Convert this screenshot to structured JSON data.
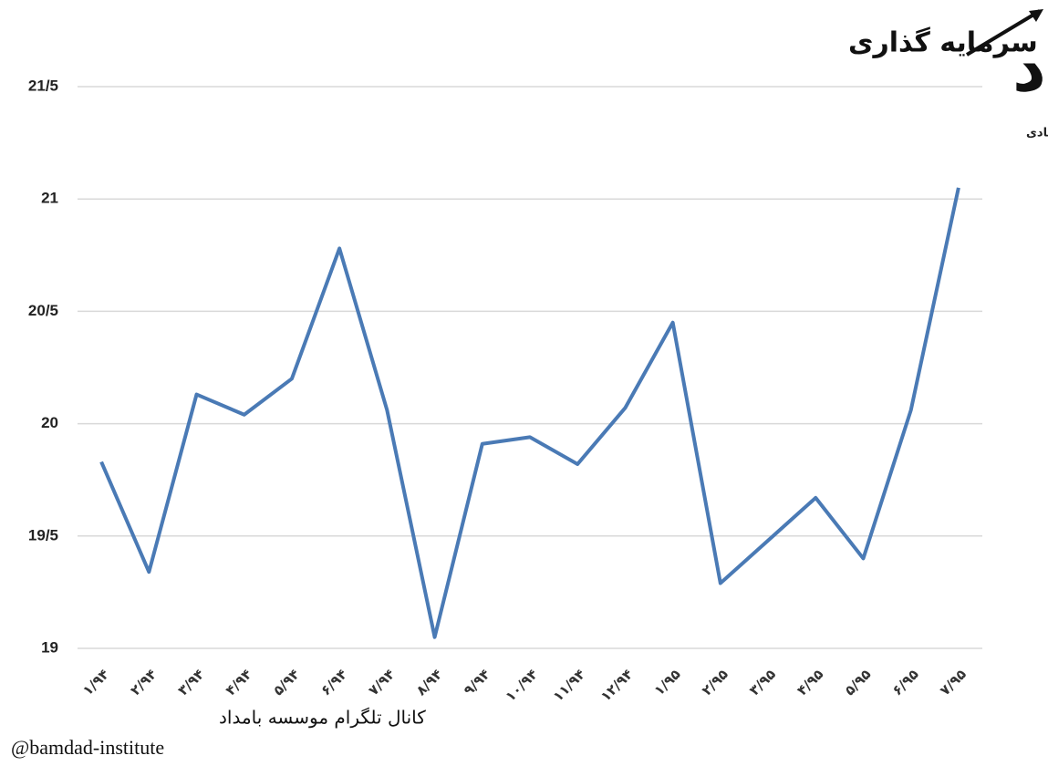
{
  "chart_data": {
    "type": "line",
    "title": "بررسی روند تغییرات نرخ بازده صندوق های سرمایه گذاری",
    "categories": [
      "۱/۹۴",
      "۲/۹۴",
      "۳/۹۴",
      "۴/۹۴",
      "۵/۹۴",
      "۶/۹۴",
      "۷/۹۴",
      "۸/۹۴",
      "۹/۹۴",
      "۱۰/۹۴",
      "۱۱/۹۴",
      "۱۲/۹۴",
      "۱/۹۵",
      "۲/۹۵",
      "۳/۹۵",
      "۴/۹۵",
      "۵/۹۵",
      "۶/۹۵",
      "۷/۹۵"
    ],
    "values": [
      19.83,
      19.34,
      20.13,
      20.04,
      20.2,
      20.78,
      20.06,
      19.05,
      19.91,
      19.94,
      19.82,
      20.07,
      20.45,
      19.29,
      19.48,
      19.67,
      19.4,
      20.06,
      21.05
    ],
    "color": "#4a7ab5",
    "ylim": [
      19,
      21.5
    ],
    "yticks": [
      19,
      {
        "value": 19.5,
        "label": "19/5"
      },
      20,
      {
        "value": 20.5,
        "label": "20/5"
      },
      21,
      {
        "value": 21.5,
        "label": "21/5"
      }
    ],
    "grid": true
  },
  "logo": {
    "name": "بامداد",
    "subtitle": "موسسه مطالعات اقتصادی"
  },
  "footer": {
    "channel": "کانال تلگرام موسسه بامداد",
    "handle": "@bamdad-institute"
  }
}
